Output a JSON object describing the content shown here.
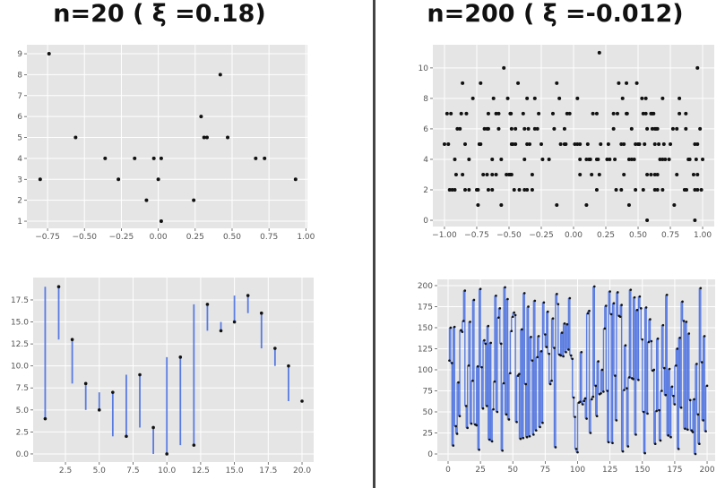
{
  "titles": [
    "n=20 ( ξ =0.18)",
    "n=200 ( ξ =-0.012)"
  ],
  "colors": {
    "panel_bg": "#e5e5e5",
    "grid": "#ffffff",
    "point": "#111111",
    "line": "#4169e1",
    "divider": "#444444"
  },
  "chart_data": [
    {
      "type": "scatter",
      "grid": true,
      "xlim": [
        -0.89,
        1.01
      ],
      "ylim": [
        0.66,
        9.43
      ],
      "xticks": [
        -0.75,
        -0.5,
        -0.25,
        0,
        0.25,
        0.5,
        0.75,
        1.0
      ],
      "xtick_labels": [
        "−0.75",
        "−0.50",
        "−0.25",
        "0.00",
        "0.25",
        "0.50",
        "0.75",
        "1.00"
      ],
      "yticks": [
        1,
        2,
        3,
        4,
        5,
        6,
        7,
        8,
        9
      ],
      "ytick_labels": [
        "1",
        "2",
        "3",
        "4",
        "5",
        "6",
        "7",
        "8",
        "9"
      ],
      "points": [
        [
          -0.8,
          3
        ],
        [
          -0.74,
          9
        ],
        [
          -0.56,
          5
        ],
        [
          -0.36,
          4
        ],
        [
          -0.27,
          3
        ],
        [
          -0.16,
          4
        ],
        [
          -0.08,
          2
        ],
        [
          -0.03,
          4
        ],
        [
          0.0,
          3
        ],
        [
          0.02,
          4
        ],
        [
          0.02,
          1
        ],
        [
          0.24,
          2
        ],
        [
          0.29,
          6
        ],
        [
          0.31,
          5
        ],
        [
          0.33,
          5
        ],
        [
          0.42,
          8
        ],
        [
          0.47,
          5
        ],
        [
          0.66,
          4
        ],
        [
          0.72,
          4
        ],
        [
          0.93,
          3
        ]
      ]
    },
    {
      "type": "scatter",
      "grid": true,
      "xlim": [
        -1.09,
        1.09
      ],
      "ylim": [
        -0.41,
        11.52
      ],
      "xticks": [
        -1.0,
        -0.75,
        -0.5,
        -0.25,
        0,
        0.25,
        0.5,
        0.75,
        1.0
      ],
      "xtick_labels": [
        "−1.00",
        "−0.75",
        "−0.50",
        "−0.25",
        "0.00",
        "0.25",
        "0.50",
        "0.75",
        "1.00"
      ],
      "yticks": [
        0,
        2,
        4,
        6,
        8,
        10
      ],
      "ytick_labels": [
        "0",
        "2",
        "4",
        "6",
        "8",
        "10"
      ],
      "points": [
        [
          0.2,
          11
        ],
        [
          -0.54,
          10
        ],
        [
          0.96,
          10
        ],
        [
          -0.86,
          9
        ],
        [
          -0.72,
          9
        ],
        [
          -0.43,
          9
        ],
        [
          -0.13,
          9
        ],
        [
          0.35,
          9
        ],
        [
          0.41,
          9
        ],
        [
          0.49,
          9
        ],
        [
          -0.78,
          8
        ],
        [
          -0.62,
          8
        ],
        [
          -0.51,
          8
        ],
        [
          -0.36,
          8
        ],
        [
          -0.3,
          8
        ],
        [
          -0.11,
          8
        ],
        [
          0.03,
          8
        ],
        [
          0.38,
          8
        ],
        [
          0.53,
          8
        ],
        [
          0.56,
          8
        ],
        [
          0.69,
          8
        ],
        [
          0.82,
          8
        ],
        [
          -0.98,
          7
        ],
        [
          -0.95,
          7
        ],
        [
          -0.87,
          7
        ],
        [
          -0.83,
          7
        ],
        [
          -0.66,
          7
        ],
        [
          -0.6,
          7
        ],
        [
          -0.58,
          7
        ],
        [
          -0.49,
          7
        ],
        [
          -0.485,
          7
        ],
        [
          -0.39,
          7
        ],
        [
          -0.27,
          7
        ],
        [
          -0.16,
          7
        ],
        [
          -0.05,
          7
        ],
        [
          -0.03,
          7
        ],
        [
          0.15,
          7
        ],
        [
          0.18,
          7
        ],
        [
          0.31,
          7
        ],
        [
          0.34,
          7
        ],
        [
          0.41,
          7
        ],
        [
          0.415,
          7
        ],
        [
          0.54,
          7
        ],
        [
          0.56,
          7
        ],
        [
          0.6,
          7
        ],
        [
          0.61,
          7
        ],
        [
          0.62,
          7
        ],
        [
          0.82,
          7
        ],
        [
          0.87,
          7
        ],
        [
          -0.9,
          6
        ],
        [
          -0.88,
          6
        ],
        [
          -0.69,
          6
        ],
        [
          -0.67,
          6
        ],
        [
          -0.66,
          6
        ],
        [
          -0.58,
          6
        ],
        [
          -0.48,
          6
        ],
        [
          -0.45,
          6
        ],
        [
          -0.38,
          6
        ],
        [
          -0.35,
          6
        ],
        [
          -0.3,
          6
        ],
        [
          -0.28,
          6
        ],
        [
          -0.15,
          6
        ],
        [
          -0.07,
          6
        ],
        [
          0.31,
          6
        ],
        [
          0.45,
          6
        ],
        [
          0.57,
          6
        ],
        [
          0.61,
          6
        ],
        [
          0.63,
          6
        ],
        [
          0.64,
          6
        ],
        [
          0.65,
          6
        ],
        [
          0.77,
          6
        ],
        [
          0.8,
          6
        ],
        [
          0.87,
          6
        ],
        [
          0.98,
          6
        ],
        [
          -1.0,
          5
        ],
        [
          -0.97,
          5
        ],
        [
          -0.84,
          5
        ],
        [
          -0.73,
          5
        ],
        [
          -0.72,
          5
        ],
        [
          -0.48,
          5
        ],
        [
          -0.47,
          5
        ],
        [
          -0.45,
          5
        ],
        [
          -0.36,
          5
        ],
        [
          -0.34,
          5
        ],
        [
          -0.25,
          5
        ],
        [
          -0.1,
          5
        ],
        [
          -0.07,
          5
        ],
        [
          -0.06,
          5
        ],
        [
          0.01,
          5
        ],
        [
          0.03,
          5
        ],
        [
          0.05,
          5
        ],
        [
          0.11,
          5
        ],
        [
          0.21,
          5
        ],
        [
          0.27,
          5
        ],
        [
          0.37,
          5
        ],
        [
          0.39,
          5
        ],
        [
          0.48,
          5
        ],
        [
          0.5,
          5
        ],
        [
          0.51,
          5
        ],
        [
          0.55,
          5
        ],
        [
          0.63,
          5
        ],
        [
          0.66,
          5
        ],
        [
          0.7,
          5
        ],
        [
          0.75,
          5
        ],
        [
          0.94,
          5
        ],
        [
          0.96,
          5
        ],
        [
          -0.92,
          4
        ],
        [
          -0.81,
          4
        ],
        [
          -0.63,
          4
        ],
        [
          -0.56,
          4
        ],
        [
          -0.38,
          4
        ],
        [
          -0.24,
          4
        ],
        [
          -0.19,
          4
        ],
        [
          0.05,
          4
        ],
        [
          0.1,
          4
        ],
        [
          0.12,
          4
        ],
        [
          0.13,
          4
        ],
        [
          0.18,
          4
        ],
        [
          0.19,
          4
        ],
        [
          0.26,
          4
        ],
        [
          0.28,
          4
        ],
        [
          0.32,
          4
        ],
        [
          0.43,
          4
        ],
        [
          0.45,
          4
        ],
        [
          0.47,
          4
        ],
        [
          0.67,
          4
        ],
        [
          0.69,
          4
        ],
        [
          0.71,
          4
        ],
        [
          0.74,
          4
        ],
        [
          0.89,
          4
        ],
        [
          0.9,
          4
        ],
        [
          0.95,
          4
        ],
        [
          1.0,
          4
        ],
        [
          -0.91,
          3
        ],
        [
          -0.86,
          3
        ],
        [
          -0.7,
          3
        ],
        [
          -0.67,
          3
        ],
        [
          -0.63,
          3
        ],
        [
          -0.6,
          3
        ],
        [
          -0.52,
          3
        ],
        [
          -0.5,
          3
        ],
        [
          -0.49,
          3
        ],
        [
          -0.48,
          3
        ],
        [
          -0.32,
          3
        ],
        [
          0.05,
          3
        ],
        [
          0.14,
          3
        ],
        [
          0.2,
          3
        ],
        [
          0.39,
          3
        ],
        [
          0.57,
          3
        ],
        [
          0.6,
          3
        ],
        [
          0.63,
          3
        ],
        [
          0.65,
          3
        ],
        [
          0.8,
          3
        ],
        [
          0.93,
          3
        ],
        [
          0.96,
          3
        ],
        [
          -0.96,
          2
        ],
        [
          -0.94,
          2
        ],
        [
          -0.92,
          2
        ],
        [
          -0.84,
          2
        ],
        [
          -0.81,
          2
        ],
        [
          -0.75,
          2
        ],
        [
          -0.74,
          2
        ],
        [
          -0.66,
          2
        ],
        [
          -0.63,
          2
        ],
        [
          -0.46,
          2
        ],
        [
          -0.42,
          2
        ],
        [
          -0.38,
          2
        ],
        [
          -0.36,
          2
        ],
        [
          -0.32,
          2
        ],
        [
          0.18,
          2
        ],
        [
          0.33,
          2
        ],
        [
          0.37,
          2
        ],
        [
          0.48,
          2
        ],
        [
          0.54,
          2
        ],
        [
          0.63,
          2
        ],
        [
          0.65,
          2
        ],
        [
          0.69,
          2
        ],
        [
          0.86,
          2
        ],
        [
          0.875,
          2
        ],
        [
          0.94,
          2
        ],
        [
          0.96,
          2
        ],
        [
          0.99,
          2
        ],
        [
          -0.74,
          1
        ],
        [
          -0.56,
          1
        ],
        [
          -0.13,
          1
        ],
        [
          0.1,
          1
        ],
        [
          0.43,
          1
        ],
        [
          0.78,
          1
        ],
        [
          0.57,
          0
        ],
        [
          0.94,
          0
        ]
      ]
    },
    {
      "type": "line",
      "grid": true,
      "xlim": [
        0.11,
        20.86
      ],
      "ylim": [
        -0.92,
        20.04
      ],
      "xticks": [
        2.5,
        5,
        7.5,
        10,
        12.5,
        15,
        17.5,
        20
      ],
      "xtick_labels": [
        "2.5",
        "5.0",
        "7.5",
        "10.0",
        "12.5",
        "15.0",
        "17.5",
        "20.0"
      ],
      "yticks": [
        0,
        2.5,
        5,
        7.5,
        10,
        12.5,
        15,
        17.5
      ],
      "ytick_labels": [
        "0.0",
        "2.5",
        "5.0",
        "7.5",
        "10.0",
        "12.5",
        "15.0",
        "17.5"
      ],
      "values": [
        4,
        19,
        13,
        8,
        5,
        7,
        2,
        9,
        3,
        0,
        11,
        1,
        17,
        14,
        15,
        18,
        16,
        12,
        10,
        6
      ]
    },
    {
      "type": "line",
      "grid": true,
      "xlim": [
        -8.3,
        206.2
      ],
      "ylim": [
        -8.5,
        207.4
      ],
      "xticks": [
        0,
        25,
        50,
        75,
        100,
        125,
        150,
        175,
        200
      ],
      "xtick_labels": [
        "0",
        "25",
        "50",
        "75",
        "100",
        "125",
        "150",
        "175",
        "200"
      ],
      "yticks": [
        0,
        25,
        50,
        75,
        100,
        125,
        150,
        175,
        200
      ],
      "ytick_labels": [
        "0",
        "25",
        "50",
        "75",
        "100",
        "125",
        "150",
        "175",
        "200"
      ],
      "values": [
        111,
        150,
        108,
        10,
        151,
        33,
        24,
        85,
        45,
        147,
        145,
        158,
        194,
        57,
        31,
        105,
        157,
        36,
        87,
        183,
        35,
        34,
        104,
        5,
        196,
        103,
        54,
        135,
        131,
        57,
        152,
        17,
        132,
        15,
        53,
        86,
        188,
        50,
        162,
        173,
        131,
        4,
        84,
        198,
        47,
        184,
        41,
        96,
        146,
        163,
        168,
        165,
        38,
        93,
        95,
        18,
        148,
        19,
        191,
        83,
        20,
        175,
        21,
        139,
        111,
        23,
        182,
        28,
        115,
        140,
        32,
        122,
        37,
        180,
        142,
        127,
        169,
        119,
        83,
        87,
        161,
        126,
        8,
        190,
        178,
        118,
        117,
        144,
        116,
        155,
        121,
        154,
        124,
        185,
        117,
        113,
        67,
        44,
        6,
        2,
        61,
        62,
        121,
        59,
        63,
        66,
        42,
        167,
        170,
        25,
        65,
        68,
        199,
        81,
        45,
        110,
        71,
        72,
        100,
        74,
        149,
        176,
        75,
        14,
        193,
        166,
        13,
        179,
        93,
        40,
        192,
        164,
        163,
        177,
        3,
        76,
        129,
        78,
        9,
        91,
        195,
        90,
        89,
        186,
        23,
        171,
        88,
        187,
        173,
        136,
        50,
        1,
        174,
        48,
        133,
        160,
        134,
        99,
        100,
        12,
        51,
        137,
        52,
        16,
        75,
        153,
        102,
        70,
        189,
        22,
        101,
        20,
        80,
        69,
        59,
        105,
        125,
        6,
        138,
        55,
        181,
        158,
        30,
        157,
        29,
        143,
        64,
        28,
        26,
        65,
        0,
        107,
        47,
        12,
        197,
        109,
        40,
        140,
        27,
        81
      ]
    }
  ]
}
